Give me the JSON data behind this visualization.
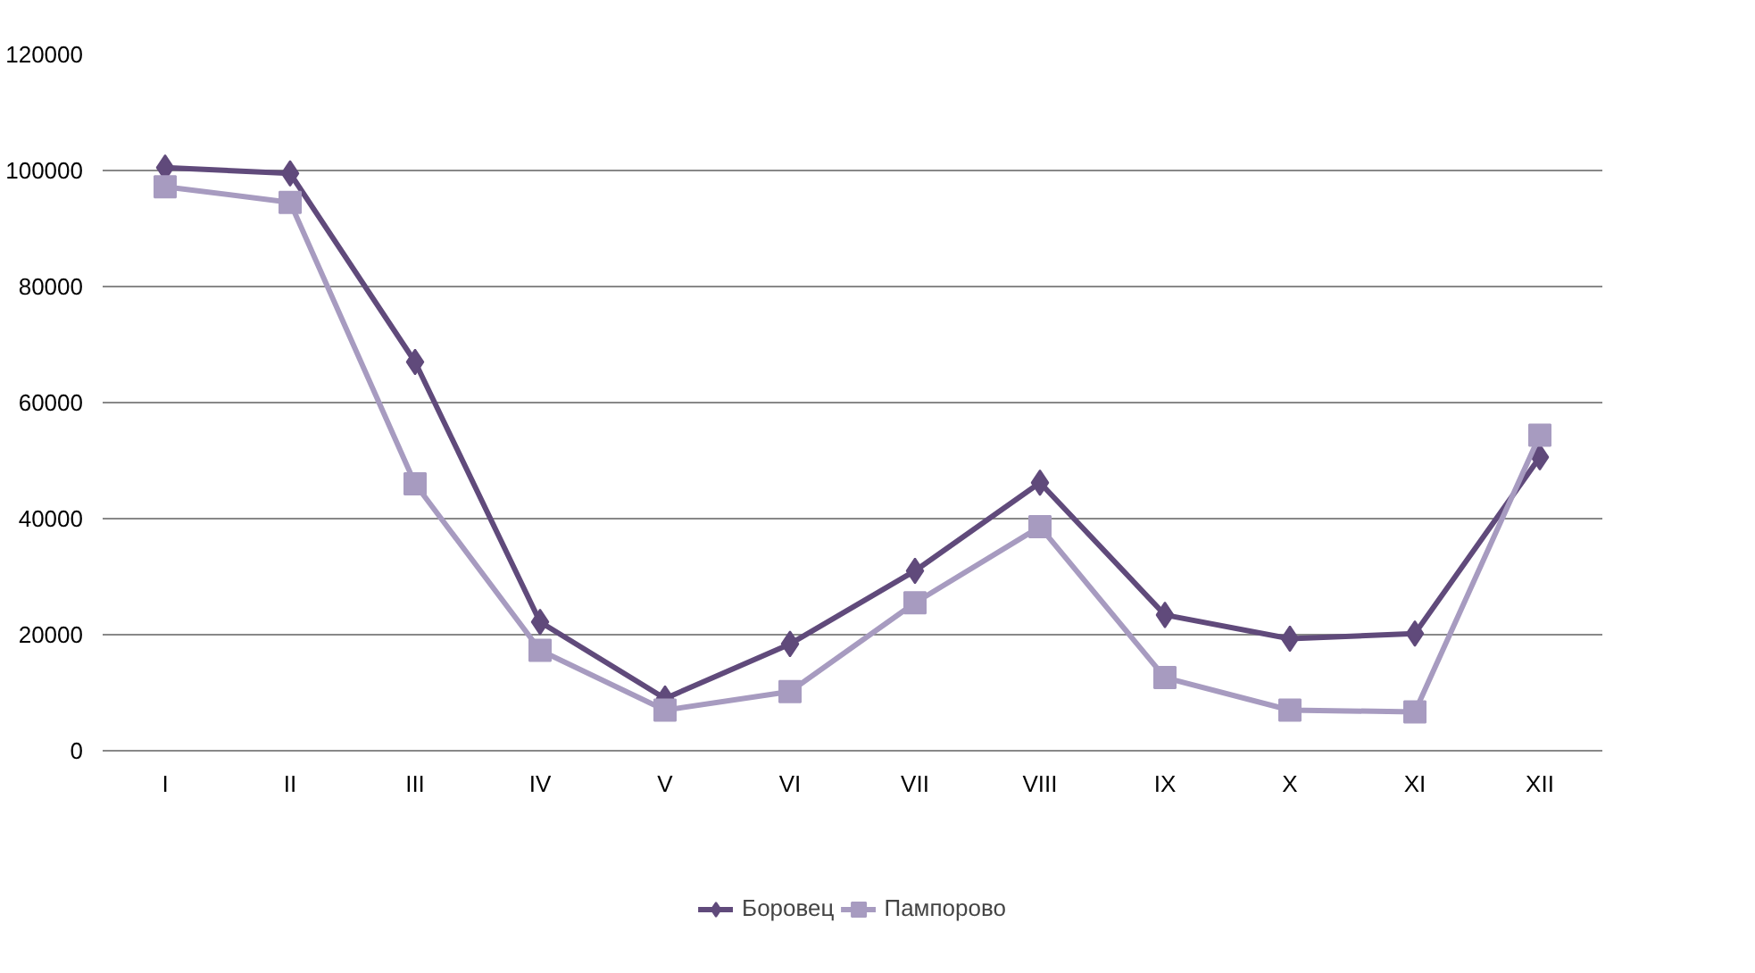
{
  "chart_data": {
    "type": "line",
    "categories": [
      "I",
      "II",
      "III",
      "IV",
      "V",
      "VI",
      "VII",
      "VIII",
      "IX",
      "X",
      "XI",
      "XII"
    ],
    "series": [
      {
        "name": "Боровец",
        "color": "#604a7b",
        "marker": "diamond",
        "values": [
          100500,
          99500,
          67000,
          22200,
          9000,
          18400,
          31000,
          46200,
          23400,
          19300,
          20200,
          50600
        ]
      },
      {
        "name": "Пампорово",
        "color": "#a79bc0",
        "marker": "square",
        "values": [
          97200,
          94500,
          46000,
          17300,
          7000,
          10200,
          25500,
          38600,
          12600,
          7000,
          6700,
          54400
        ]
      }
    ],
    "ylim": [
      0,
      120000
    ],
    "yticks": [
      0,
      20000,
      40000,
      60000,
      80000,
      100000,
      120000
    ],
    "grid": "y",
    "legend": "bottom",
    "line_style": "solid"
  }
}
